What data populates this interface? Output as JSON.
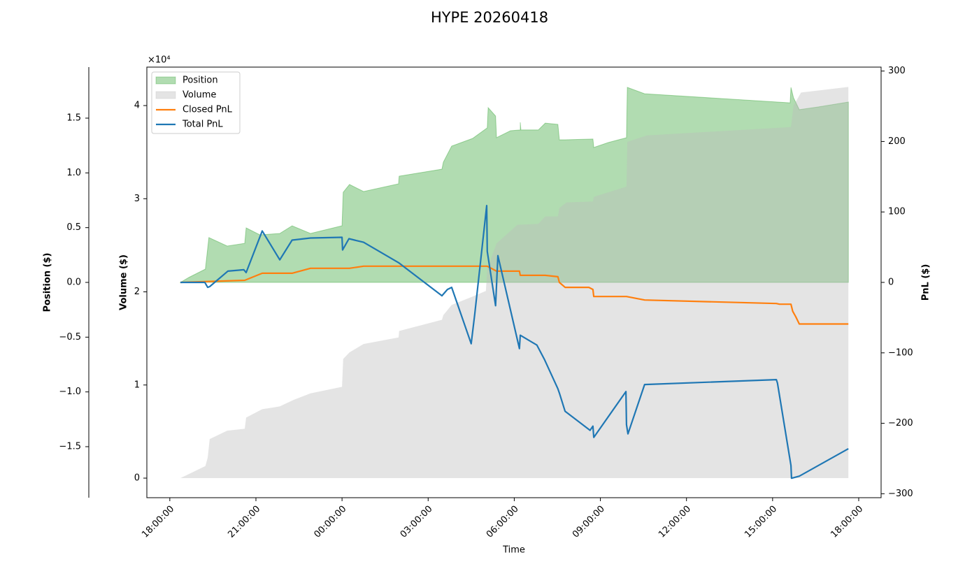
{
  "chart_data": {
    "type": "line",
    "title": "HYPE 20260418",
    "xlabel": "Time",
    "xlim": [
      -0.8,
      24.78
    ],
    "xticks": [
      {
        "value": 0,
        "label": "18:00:00"
      },
      {
        "value": 3,
        "label": "21:00:00"
      },
      {
        "value": 6,
        "label": "00:00:00"
      },
      {
        "value": 9,
        "label": "03:00:00"
      },
      {
        "value": 12,
        "label": "06:00:00"
      },
      {
        "value": 15,
        "label": "09:00:00"
      },
      {
        "value": 18,
        "label": "12:00:00"
      },
      {
        "value": 21,
        "label": "15:00:00"
      },
      {
        "value": 24,
        "label": "18:00:00"
      }
    ],
    "ylabel": "Position ($)",
    "ylabel_color": "#008000",
    "yoffset_label": "×10⁴",
    "ylim": [
      -19660,
      19660
    ],
    "yticks": [
      {
        "value": -15000,
        "label": "−1.5"
      },
      {
        "value": -10000,
        "label": "−1.0"
      },
      {
        "value": -5000,
        "label": "−0.5"
      },
      {
        "value": 0,
        "label": "0.0"
      },
      {
        "value": 5000,
        "label": "0.5"
      },
      {
        "value": 10000,
        "label": "1.0"
      },
      {
        "value": 15000,
        "label": "1.5"
      }
    ],
    "y3label": "Volume ($)",
    "y3label_color": "#808080",
    "y3lim": [
      -0.21,
      4.413
    ],
    "y3ticks": [
      0,
      1,
      2,
      3,
      4
    ],
    "y2label": "PnL ($)",
    "y2lim": [
      -305.6,
      305.6
    ],
    "y2ticks": [
      {
        "value": -300,
        "label": "−300"
      },
      {
        "value": -200,
        "label": "−200"
      },
      {
        "value": -100,
        "label": "−100"
      },
      0,
      100,
      200,
      300
    ],
    "legend": "upper left",
    "series": [
      {
        "name": "Position",
        "type": "area",
        "axis": "y",
        "color": "#2ca02c",
        "x": [
          0.37,
          0.66,
          1.24,
          1.36,
          2.0,
          2.61,
          2.66,
          3.14,
          3.83,
          4.26,
          4.9,
          6.0,
          6.04,
          6.26,
          6.75,
          7.97,
          7.99,
          9.48,
          9.53,
          9.82,
          10.55,
          11.06,
          11.09,
          11.35,
          11.38,
          11.87,
          12.21,
          12.21,
          12.23,
          12.84,
          13.08,
          13.52,
          13.57,
          13.77,
          14.74,
          14.77,
          15.28,
          15.91,
          15.94,
          16.54,
          21.17,
          21.61,
          21.64,
          21.73,
          21.93,
          22.59,
          23.64
        ],
        "values": [
          0,
          450,
          1210,
          4090,
          3320,
          3570,
          4980,
          4340,
          4470,
          5170,
          4470,
          5170,
          8230,
          8940,
          8300,
          9000,
          9700,
          10340,
          10980,
          12450,
          13150,
          14110,
          15960,
          15190,
          13210,
          13850,
          13920,
          14620,
          13920,
          13920,
          14550,
          14430,
          13020,
          13020,
          13090,
          12320,
          12770,
          13210,
          17810,
          17230,
          16470,
          16400,
          17810,
          16850,
          15770,
          16020,
          16470
        ]
      },
      {
        "name": "Volume",
        "type": "area",
        "axis": "y3",
        "color": "#bbbbbb",
        "x": [
          0.37,
          1.24,
          1.32,
          1.39,
          2.0,
          2.61,
          2.66,
          3.22,
          3.83,
          4.31,
          4.9,
          6.0,
          6.04,
          6.26,
          6.75,
          7.97,
          7.99,
          9.48,
          9.53,
          9.82,
          10.55,
          11.01,
          11.06,
          11.35,
          11.38,
          12.11,
          12.84,
          13.08,
          13.52,
          13.57,
          13.82,
          14.74,
          14.77,
          15.91,
          15.94,
          16.62,
          21.13,
          21.64,
          21.73,
          21.99,
          23.64
        ],
        "values": [
          0,
          0.13,
          0.22,
          0.42,
          0.51,
          0.53,
          0.65,
          0.74,
          0.77,
          0.84,
          0.91,
          0.98,
          1.28,
          1.35,
          1.44,
          1.51,
          1.58,
          1.7,
          1.75,
          1.86,
          1.95,
          2.01,
          2.25,
          2.49,
          2.52,
          2.72,
          2.73,
          2.81,
          2.81,
          2.9,
          2.96,
          2.97,
          3.02,
          3.13,
          3.61,
          3.68,
          3.76,
          3.77,
          4.0,
          4.14,
          4.2
        ]
      },
      {
        "name": "Closed PnL",
        "type": "line",
        "axis": "y2",
        "color": "#ff7f0e",
        "x": [
          0.37,
          2.61,
          3.22,
          4.26,
          4.9,
          6.26,
          6.75,
          11.06,
          11.38,
          12.18,
          12.21,
          13.08,
          13.52,
          13.57,
          13.77,
          14.6,
          14.74,
          14.77,
          15.91,
          16.54,
          21.13,
          21.24,
          21.64,
          21.7,
          21.81,
          21.93,
          23.64
        ],
        "values": [
          0,
          3,
          13,
          13,
          20,
          20,
          23,
          23,
          16,
          16,
          10,
          10,
          8,
          0,
          -7,
          -7,
          -10,
          -20,
          -20,
          -25,
          -30,
          -31,
          -31,
          -41,
          -49,
          -59,
          -59
        ]
      },
      {
        "name": "Total PnL",
        "type": "line",
        "axis": "y2",
        "color": "#1f77b4",
        "x": [
          0.37,
          1.22,
          1.32,
          1.39,
          2.02,
          2.58,
          2.66,
          3.22,
          3.83,
          4.26,
          4.9,
          6.0,
          6.02,
          6.24,
          6.75,
          7.97,
          9.48,
          9.67,
          9.82,
          10.5,
          10.62,
          11.04,
          11.06,
          11.35,
          11.43,
          12.18,
          12.21,
          12.79,
          13.06,
          13.52,
          13.57,
          13.77,
          14.64,
          14.74,
          14.77,
          15.89,
          15.91,
          15.96,
          16.54,
          21.13,
          21.17,
          21.64,
          21.66,
          21.93,
          23.64
        ],
        "values": [
          0,
          0,
          -7,
          -6,
          16,
          18,
          14,
          73,
          32,
          60,
          63,
          64,
          46,
          62,
          57,
          28,
          -19,
          -10,
          -7,
          -87,
          -46,
          109,
          44,
          -33,
          38,
          -94,
          -75,
          -89,
          -110,
          -151,
          -157,
          -183,
          -210,
          -204,
          -220,
          -155,
          -202,
          -215,
          -145,
          -138,
          -143,
          -260,
          -278,
          -275,
          -236
        ]
      }
    ]
  }
}
